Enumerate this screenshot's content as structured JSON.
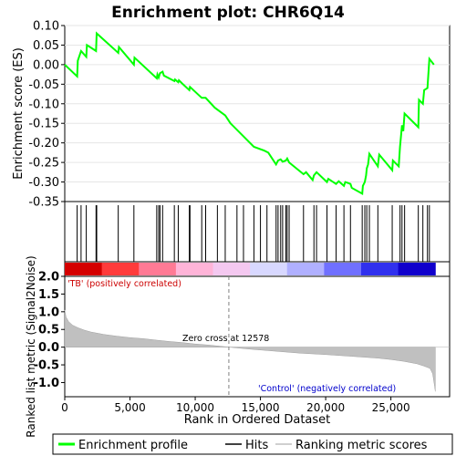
{
  "title": "Enrichment plot: CHR6Q14",
  "colors": {
    "es_line": "#00ff00",
    "hits": "#000000",
    "metric_fill": "#c0c0c0",
    "positive_label": "#cc0000",
    "negative_label": "#0000cc"
  },
  "chart_data": [
    {
      "type": "line",
      "panel": "enrichment-profile",
      "ylabel": "Enrichment score (ES)",
      "ylim": [
        -0.35,
        0.1
      ],
      "yticks": [
        -0.35,
        -0.3,
        -0.25,
        -0.2,
        -0.15,
        -0.1,
        -0.05,
        0.0,
        0.05,
        0.1
      ],
      "ytick_labels": [
        "-0.35",
        "-0.30",
        "-0.25",
        "-0.20",
        "-0.15",
        "-0.10",
        "-0.05",
        "0.00",
        "0.05",
        "0.10"
      ],
      "xlim": [
        0,
        29500
      ],
      "grid": true,
      "series": [
        {
          "name": "Enrichment profile",
          "x": [
            0,
            950,
            1000,
            1250,
            1650,
            1700,
            2400,
            2450,
            4100,
            4150,
            5300,
            5350,
            7050,
            7100,
            7200,
            7300,
            7500,
            7600,
            8400,
            8450,
            8700,
            8750,
            9000,
            9550,
            9600,
            10500,
            10550,
            10800,
            11500,
            12300,
            12700,
            14500,
            15300,
            15600,
            16200,
            16350,
            16550,
            16700,
            16950,
            17050,
            17200,
            18300,
            18500,
            19000,
            19100,
            19300,
            20100,
            20200,
            20800,
            21000,
            21400,
            21500,
            21900,
            22000,
            22800,
            22850,
            23000,
            23100,
            23150,
            23250,
            23350,
            24000,
            24100,
            25100,
            25150,
            25600,
            25700,
            25850,
            25950,
            26050,
            27100,
            27150,
            27450,
            27550,
            27800,
            27950,
            28300
          ],
          "y": [
            0.0,
            -0.03,
            0.01,
            0.035,
            0.02,
            0.05,
            0.035,
            0.08,
            0.03,
            0.045,
            0.0,
            0.018,
            -0.035,
            -0.025,
            -0.033,
            -0.022,
            -0.018,
            -0.028,
            -0.042,
            -0.038,
            -0.045,
            -0.04,
            -0.048,
            -0.065,
            -0.057,
            -0.085,
            -0.085,
            -0.085,
            -0.11,
            -0.13,
            -0.15,
            -0.21,
            -0.22,
            -0.225,
            -0.255,
            -0.245,
            -0.242,
            -0.248,
            -0.245,
            -0.24,
            -0.25,
            -0.28,
            -0.275,
            -0.295,
            -0.283,
            -0.275,
            -0.3,
            -0.292,
            -0.305,
            -0.298,
            -0.31,
            -0.3,
            -0.305,
            -0.315,
            -0.33,
            -0.31,
            -0.3,
            -0.283,
            -0.265,
            -0.255,
            -0.228,
            -0.26,
            -0.23,
            -0.27,
            -0.245,
            -0.26,
            -0.21,
            -0.155,
            -0.17,
            -0.125,
            -0.16,
            -0.09,
            -0.1,
            -0.065,
            -0.06,
            0.015,
            0.0
          ]
        }
      ],
      "legend": "bottom"
    },
    {
      "type": "scatter",
      "panel": "hits",
      "series": [
        {
          "name": "Hits",
          "x": [
            950,
            1250,
            1650,
            2400,
            2450,
            4100,
            5300,
            7050,
            7200,
            7300,
            7500,
            8400,
            8700,
            9550,
            9600,
            10500,
            10800,
            11700,
            12300,
            13200,
            13700,
            14500,
            15000,
            15500,
            16200,
            16350,
            16550,
            16700,
            16950,
            17050,
            17200,
            18300,
            19100,
            19300,
            20100,
            20800,
            21400,
            21900,
            22800,
            23000,
            23150,
            23350,
            24000,
            25100,
            25700,
            25850,
            26050,
            27100,
            27450,
            27800,
            27950
          ]
        }
      ]
    },
    {
      "type": "heatmap",
      "panel": "ranked-list-colorbar",
      "ramp": [
        "#d40000",
        "#ff3b3b",
        "#ff7a95",
        "#ffb4d8",
        "#f4c8f0",
        "#d8d8ff",
        "#b0b0ff",
        "#7070ff",
        "#3030ee",
        "#1000cc"
      ],
      "zero_cross": 12578
    },
    {
      "type": "area",
      "panel": "ranked-list-metric",
      "ylabel": "Ranked list metric (Signal2Noise)",
      "xlabel": "Rank in Ordered Dataset",
      "ylim": [
        -1.4,
        2.0
      ],
      "yticks": [
        -1.0,
        -0.5,
        0.0,
        0.5,
        1.0,
        1.5,
        2.0
      ],
      "ytick_labels": [
        "-1.0",
        "-0.5",
        "0.0",
        "0.5",
        "1.0",
        "1.5",
        "2.0"
      ],
      "xlim": [
        0,
        29500
      ],
      "xticks": [
        0,
        5000,
        10000,
        15000,
        20000,
        25000
      ],
      "xtick_labels": [
        "0",
        "5,000",
        "10,000",
        "15,000",
        "20,000",
        "25,000"
      ],
      "x": [
        0,
        100,
        300,
        600,
        1000,
        1500,
        2000,
        3000,
        4000,
        5000,
        6000,
        7000,
        8000,
        9000,
        10000,
        11000,
        12578,
        14000,
        16000,
        18000,
        20000,
        22000,
        24000,
        25000,
        26000,
        27000,
        27500,
        28000,
        28200,
        28350,
        28400
      ],
      "y": [
        1.05,
        0.85,
        0.72,
        0.62,
        0.55,
        0.48,
        0.43,
        0.36,
        0.31,
        0.27,
        0.24,
        0.2,
        0.16,
        0.13,
        0.09,
        0.06,
        0.0,
        -0.05,
        -0.11,
        -0.17,
        -0.21,
        -0.26,
        -0.31,
        -0.35,
        -0.4,
        -0.47,
        -0.53,
        -0.6,
        -0.75,
        -1.1,
        -1.25
      ],
      "annotations": {
        "positive": "'TB' (positively correlated)",
        "zero_cross": "Zero cross at 12578",
        "negative": "'Control' (negatively correlated)"
      }
    }
  ],
  "legend": {
    "items": [
      "Enrichment profile",
      "Hits",
      "Ranking metric scores"
    ]
  }
}
